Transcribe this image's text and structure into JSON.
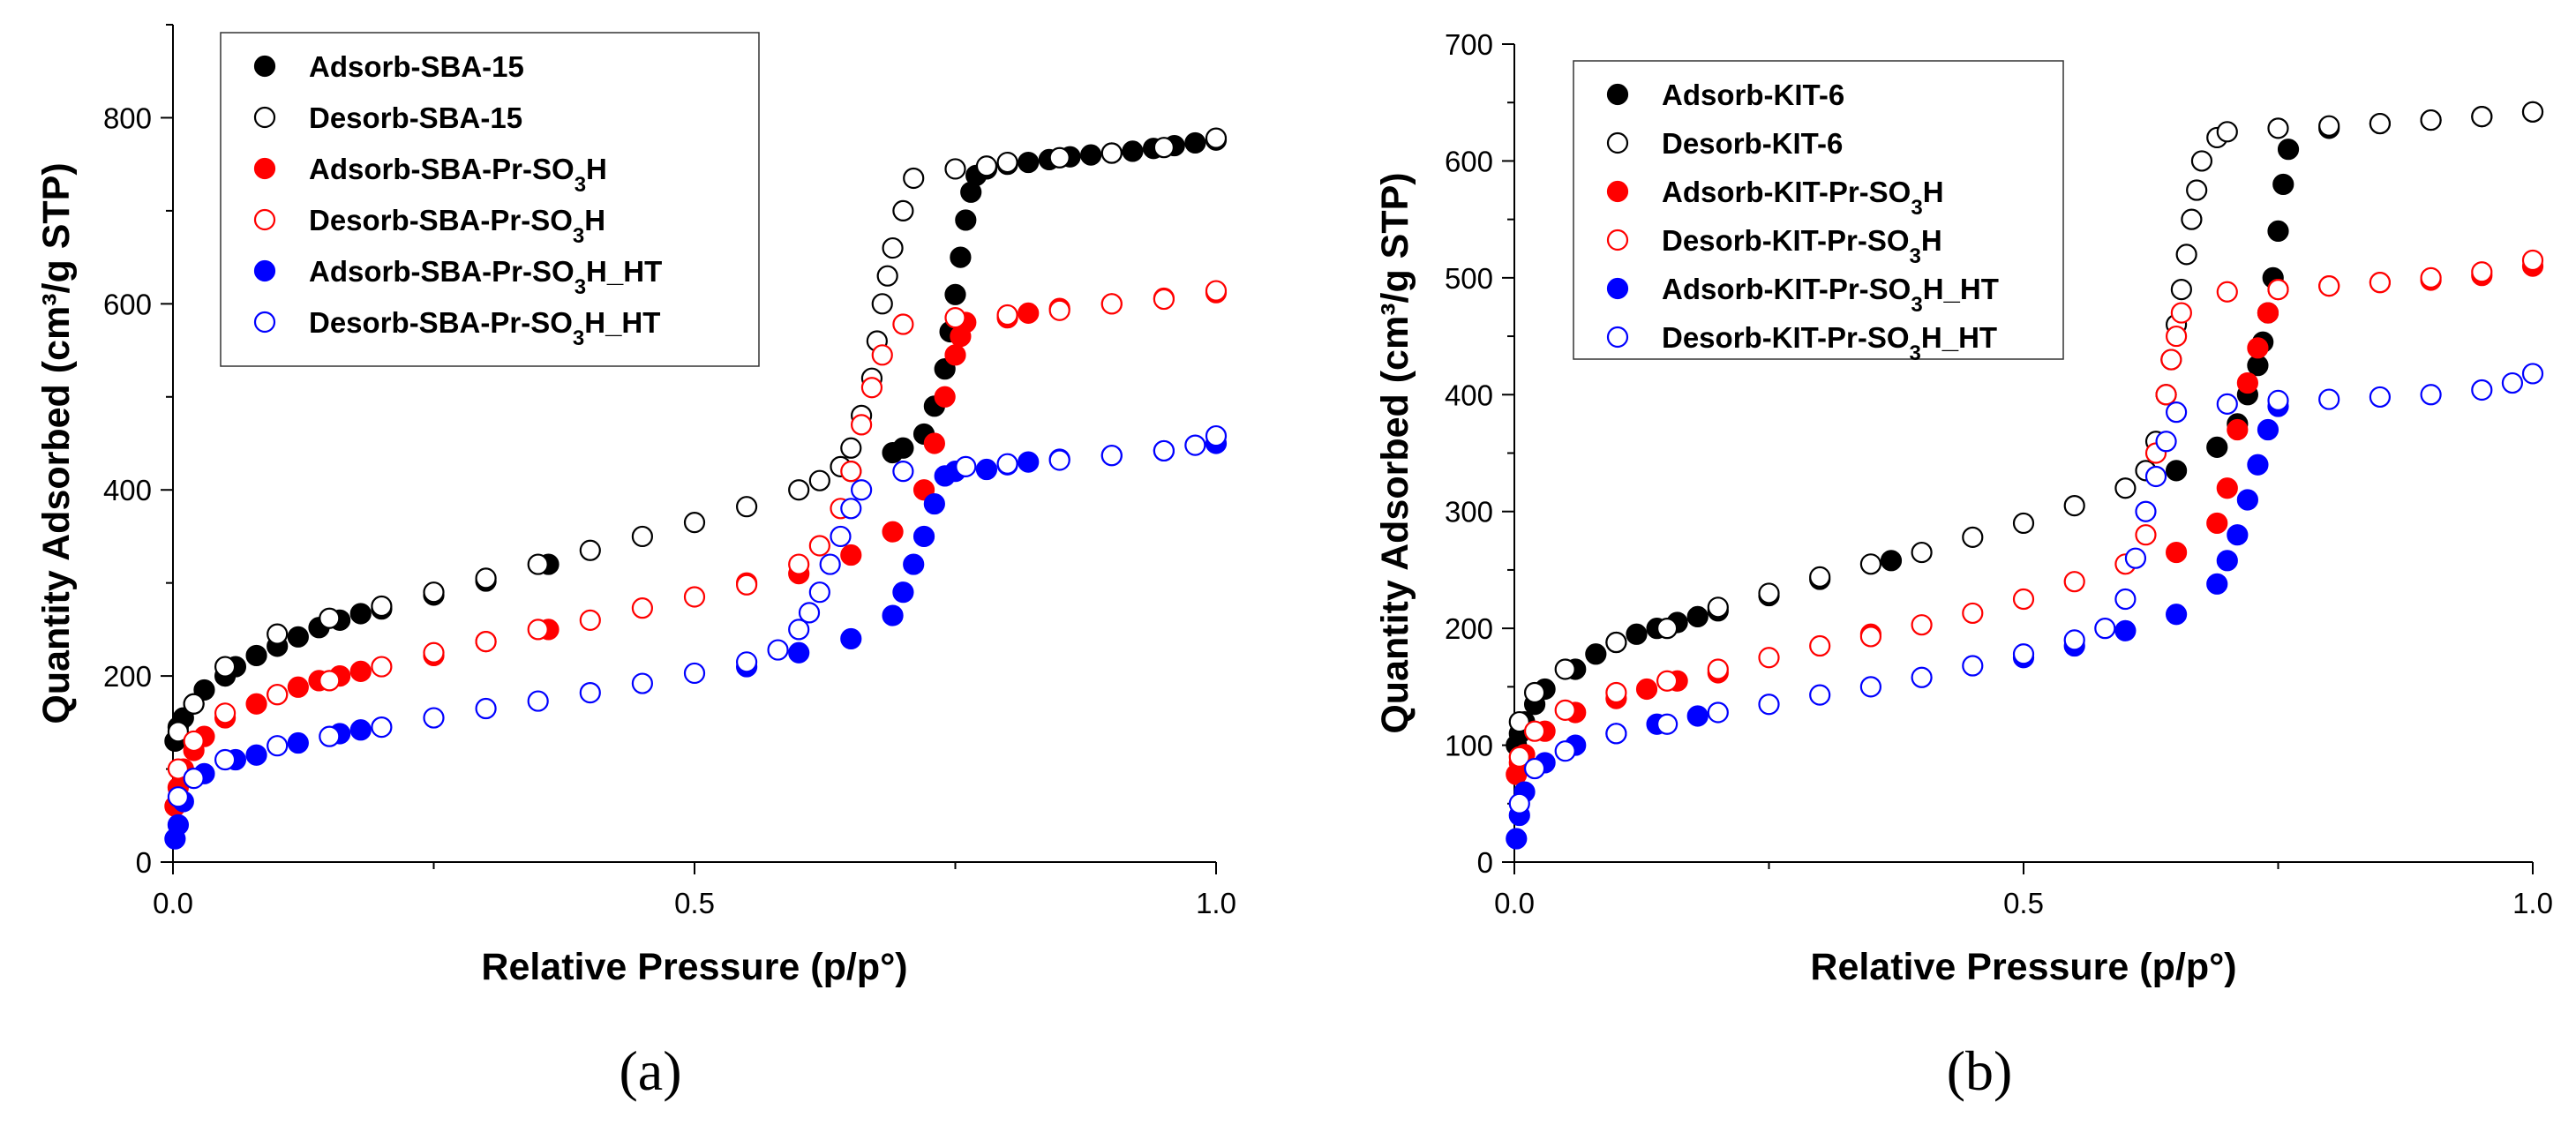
{
  "chart_data": [
    {
      "panel_label": "(a)",
      "type": "scatter",
      "xlabel": "Relative Pressure (p/p°)",
      "ylabel": "Quantity Adsorbed (cm³/g STP)",
      "xlim": [
        0,
        1.0
      ],
      "ylim": [
        0,
        900
      ],
      "xticks": [
        0.0,
        0.5,
        1.0
      ],
      "xtick_labels": [
        "0.0",
        "0.5",
        "1.0"
      ],
      "yticks": [
        0,
        200,
        400,
        600,
        800
      ],
      "ytick_labels": [
        "0",
        "200",
        "400",
        "600",
        "800"
      ],
      "legend_position": "top-left",
      "series": [
        {
          "name": "Adsorb-SBA-15",
          "label_base": "Adsorb-SBA-15",
          "label_sub": "",
          "label_tail": "",
          "color": "#000000",
          "filled": true,
          "x": [
            0.002,
            0.005,
            0.01,
            0.02,
            0.03,
            0.05,
            0.06,
            0.08,
            0.1,
            0.12,
            0.14,
            0.16,
            0.18,
            0.2,
            0.25,
            0.3,
            0.36,
            0.65,
            0.69,
            0.7,
            0.72,
            0.73,
            0.74,
            0.745,
            0.75,
            0.755,
            0.76,
            0.765,
            0.77,
            0.78,
            0.8,
            0.82,
            0.84,
            0.86,
            0.88,
            0.9,
            0.92,
            0.94,
            0.96,
            0.98,
            1.0
          ],
          "y": [
            130,
            145,
            155,
            170,
            185,
            200,
            210,
            222,
            232,
            242,
            252,
            260,
            267,
            272,
            287,
            302,
            320,
            420,
            440,
            445,
            460,
            490,
            530,
            570,
            610,
            650,
            690,
            720,
            738,
            745,
            750,
            752,
            755,
            758,
            760,
            762,
            764,
            767,
            770,
            773,
            776
          ]
        },
        {
          "name": "Desorb-SBA-15",
          "label_base": "Desorb-SBA-15",
          "label_sub": "",
          "label_tail": "",
          "color": "#000000",
          "filled": false,
          "x": [
            0.005,
            0.02,
            0.05,
            0.1,
            0.15,
            0.2,
            0.25,
            0.3,
            0.35,
            0.4,
            0.45,
            0.5,
            0.55,
            0.6,
            0.62,
            0.64,
            0.65,
            0.66,
            0.67,
            0.675,
            0.68,
            0.685,
            0.69,
            0.7,
            0.71,
            0.75,
            0.78,
            0.8,
            0.85,
            0.9,
            0.95,
            1.0
          ],
          "y": [
            140,
            170,
            210,
            245,
            262,
            275,
            290,
            305,
            320,
            335,
            350,
            365,
            382,
            400,
            410,
            425,
            445,
            480,
            520,
            560,
            600,
            630,
            660,
            700,
            735,
            745,
            748,
            752,
            757,
            762,
            768,
            778
          ]
        },
        {
          "name": "Adsorb-SBA-Pr-SO3H",
          "label_base": "Adsorb-SBA-Pr-SO",
          "label_sub": "3",
          "label_tail": "H",
          "color": "#ff0000",
          "filled": true,
          "x": [
            0.002,
            0.005,
            0.01,
            0.02,
            0.03,
            0.05,
            0.08,
            0.1,
            0.12,
            0.14,
            0.16,
            0.18,
            0.25,
            0.3,
            0.36,
            0.55,
            0.6,
            0.65,
            0.69,
            0.72,
            0.73,
            0.74,
            0.75,
            0.755,
            0.76,
            0.8,
            0.82,
            0.85,
            0.9,
            0.95,
            1.0
          ],
          "y": [
            60,
            80,
            100,
            120,
            135,
            155,
            170,
            180,
            188,
            195,
            200,
            205,
            222,
            237,
            250,
            300,
            310,
            330,
            355,
            400,
            450,
            500,
            545,
            565,
            580,
            585,
            590,
            595,
            600,
            606,
            612
          ]
        },
        {
          "name": "Desorb-SBA-Pr-SO3H",
          "label_base": "Desorb-SBA-Pr-SO",
          "label_sub": "3",
          "label_tail": "H",
          "color": "#ff0000",
          "filled": false,
          "x": [
            0.005,
            0.02,
            0.05,
            0.1,
            0.15,
            0.2,
            0.25,
            0.3,
            0.35,
            0.4,
            0.45,
            0.5,
            0.55,
            0.6,
            0.62,
            0.64,
            0.65,
            0.66,
            0.67,
            0.68,
            0.7,
            0.75,
            0.8,
            0.85,
            0.9,
            0.95,
            1.0
          ],
          "y": [
            100,
            130,
            160,
            180,
            195,
            210,
            225,
            237,
            250,
            260,
            273,
            285,
            298,
            320,
            340,
            380,
            420,
            470,
            510,
            545,
            578,
            585,
            588,
            593,
            600,
            605,
            614
          ]
        },
        {
          "name": "Adsorb-SBA-Pr-SO3H_HT",
          "label_base": "Adsorb-SBA-Pr-SO",
          "label_sub": "3",
          "label_tail": "H_HT",
          "color": "#0000ff",
          "filled": true,
          "x": [
            0.002,
            0.005,
            0.01,
            0.03,
            0.06,
            0.08,
            0.12,
            0.16,
            0.18,
            0.55,
            0.6,
            0.65,
            0.69,
            0.7,
            0.71,
            0.72,
            0.73,
            0.74,
            0.75,
            0.78,
            0.8,
            0.82,
            0.85,
            0.9,
            0.95,
            1.0
          ],
          "y": [
            25,
            40,
            65,
            95,
            110,
            115,
            128,
            138,
            142,
            210,
            225,
            240,
            265,
            290,
            320,
            350,
            385,
            415,
            420,
            422,
            427,
            430,
            433,
            437,
            442,
            450
          ]
        },
        {
          "name": "Desorb-SBA-Pr-SO3H_HT",
          "label_base": "Desorb-SBA-Pr-SO",
          "label_sub": "3",
          "label_tail": "H_HT",
          "color": "#0000ff",
          "filled": false,
          "x": [
            0.005,
            0.02,
            0.05,
            0.1,
            0.15,
            0.2,
            0.25,
            0.3,
            0.35,
            0.4,
            0.45,
            0.5,
            0.55,
            0.58,
            0.6,
            0.61,
            0.62,
            0.63,
            0.64,
            0.65,
            0.66,
            0.7,
            0.76,
            0.8,
            0.85,
            0.9,
            0.95,
            0.98,
            1.0
          ],
          "y": [
            70,
            90,
            110,
            125,
            135,
            145,
            155,
            165,
            173,
            182,
            192,
            203,
            215,
            228,
            250,
            268,
            290,
            320,
            350,
            380,
            400,
            420,
            425,
            428,
            432,
            437,
            442,
            448,
            458
          ]
        }
      ]
    },
    {
      "panel_label": "(b)",
      "type": "scatter",
      "xlabel": "Relative Pressure (p/p°)",
      "ylabel": "Quantity Adsorbed (cm³/g STP)",
      "xlim": [
        0,
        1.0
      ],
      "ylim": [
        0,
        700
      ],
      "xticks": [
        0.0,
        0.5,
        1.0
      ],
      "xtick_labels": [
        "0.0",
        "0.5",
        "1.0"
      ],
      "yticks": [
        0,
        100,
        200,
        300,
        400,
        500,
        600,
        700
      ],
      "ytick_labels": [
        "0",
        "100",
        "200",
        "300",
        "400",
        "500",
        "600",
        "700"
      ],
      "legend_position": "top-left",
      "series": [
        {
          "name": "Adsorb-KIT-6",
          "label_base": "Adsorb-KIT-6",
          "label_sub": "",
          "label_tail": "",
          "color": "#000000",
          "filled": true,
          "x": [
            0.002,
            0.005,
            0.01,
            0.02,
            0.03,
            0.06,
            0.08,
            0.1,
            0.12,
            0.14,
            0.16,
            0.18,
            0.2,
            0.25,
            0.3,
            0.37,
            0.65,
            0.69,
            0.71,
            0.72,
            0.73,
            0.735,
            0.74,
            0.745,
            0.75,
            0.755,
            0.76,
            0.8,
            0.85,
            0.9,
            0.95,
            1.0
          ],
          "y": [
            100,
            110,
            120,
            135,
            148,
            165,
            178,
            188,
            195,
            200,
            205,
            210,
            215,
            228,
            242,
            258,
            335,
            355,
            375,
            400,
            425,
            445,
            470,
            500,
            540,
            580,
            610,
            628,
            632,
            635,
            638,
            642
          ]
        },
        {
          "name": "Desorb-KIT-6",
          "label_base": "Desorb-KIT-6",
          "label_sub": "",
          "label_tail": "",
          "color": "#000000",
          "filled": false,
          "x": [
            0.005,
            0.02,
            0.05,
            0.1,
            0.15,
            0.2,
            0.25,
            0.3,
            0.35,
            0.4,
            0.45,
            0.5,
            0.55,
            0.6,
            0.62,
            0.63,
            0.64,
            0.645,
            0.65,
            0.655,
            0.66,
            0.665,
            0.67,
            0.675,
            0.69,
            0.7,
            0.75,
            0.8,
            0.85,
            0.9,
            0.95,
            1.0
          ],
          "y": [
            120,
            145,
            165,
            188,
            200,
            218,
            230,
            244,
            255,
            265,
            278,
            290,
            305,
            320,
            335,
            360,
            400,
            430,
            460,
            490,
            520,
            550,
            575,
            600,
            620,
            625,
            628,
            630,
            632,
            635,
            638,
            642
          ]
        },
        {
          "name": "Adsorb-KIT-Pr-SO3H",
          "label_base": "Adsorb-KIT-Pr-SO",
          "label_sub": "3",
          "label_tail": "H",
          "color": "#ff0000",
          "filled": true,
          "x": [
            0.002,
            0.005,
            0.01,
            0.03,
            0.06,
            0.1,
            0.13,
            0.16,
            0.2,
            0.35,
            0.65,
            0.69,
            0.7,
            0.71,
            0.72,
            0.73,
            0.74,
            0.75,
            0.8,
            0.85,
            0.9,
            0.95,
            1.0
          ],
          "y": [
            75,
            85,
            92,
            112,
            128,
            140,
            148,
            155,
            162,
            195,
            265,
            290,
            320,
            370,
            410,
            440,
            470,
            490,
            493,
            496,
            498,
            502,
            510
          ]
        },
        {
          "name": "Desorb-KIT-Pr-SO3H",
          "label_base": "Desorb-KIT-Pr-SO",
          "label_sub": "3",
          "label_tail": "H",
          "color": "#ff0000",
          "filled": false,
          "x": [
            0.005,
            0.02,
            0.05,
            0.1,
            0.15,
            0.2,
            0.25,
            0.3,
            0.35,
            0.4,
            0.45,
            0.5,
            0.55,
            0.6,
            0.62,
            0.63,
            0.64,
            0.645,
            0.65,
            0.655,
            0.7,
            0.75,
            0.8,
            0.85,
            0.9,
            0.95,
            1.0
          ],
          "y": [
            90,
            112,
            130,
            145,
            155,
            165,
            175,
            185,
            193,
            203,
            213,
            225,
            240,
            255,
            280,
            350,
            400,
            430,
            450,
            470,
            488,
            490,
            493,
            496,
            500,
            505,
            515
          ]
        },
        {
          "name": "Adsorb-KIT-Pr-SO3H_HT",
          "label_base": "Adsorb-KIT-Pr-SO",
          "label_sub": "3",
          "label_tail": "H_HT",
          "color": "#0000ff",
          "filled": true,
          "x": [
            0.002,
            0.005,
            0.01,
            0.03,
            0.06,
            0.1,
            0.14,
            0.18,
            0.5,
            0.55,
            0.6,
            0.65,
            0.69,
            0.7,
            0.71,
            0.72,
            0.73,
            0.74,
            0.75
          ],
          "y": [
            20,
            40,
            60,
            85,
            100,
            110,
            118,
            125,
            175,
            185,
            198,
            212,
            238,
            258,
            280,
            310,
            340,
            370,
            390
          ]
        },
        {
          "name": "Desorb-KIT-Pr-SO3H_HT",
          "label_base": "Desorb-KIT-Pr-SO",
          "label_sub": "3",
          "label_tail": "H_HT",
          "color": "#0000ff",
          "filled": false,
          "x": [
            0.005,
            0.02,
            0.05,
            0.1,
            0.15,
            0.2,
            0.25,
            0.3,
            0.35,
            0.4,
            0.45,
            0.5,
            0.55,
            0.58,
            0.6,
            0.61,
            0.62,
            0.63,
            0.64,
            0.65,
            0.7,
            0.75,
            0.8,
            0.85,
            0.9,
            0.95,
            0.98,
            1.0
          ],
          "y": [
            50,
            80,
            95,
            110,
            118,
            128,
            135,
            143,
            150,
            158,
            168,
            178,
            190,
            200,
            225,
            260,
            300,
            330,
            360,
            385,
            392,
            395,
            396,
            398,
            400,
            404,
            410,
            418
          ]
        }
      ]
    }
  ]
}
